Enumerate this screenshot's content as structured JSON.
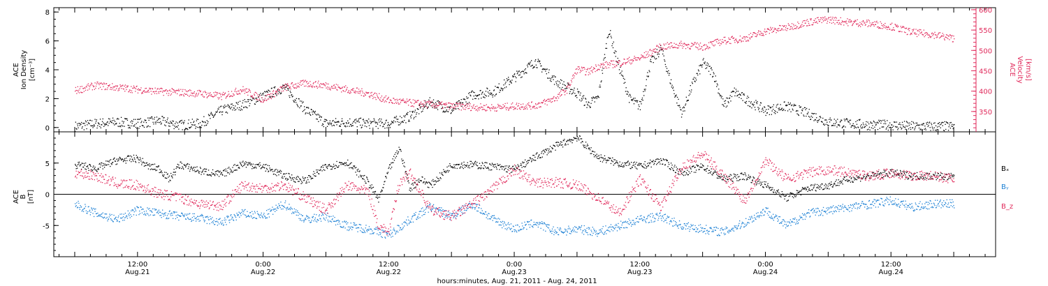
{
  "chart_data": [
    {
      "type": "scatter",
      "panel": "density-velocity",
      "ylabel_left": [
        "ACE",
        "Ion Density",
        "[cm⁻³]"
      ],
      "ylabel_right": [
        "ACE",
        "Velocity",
        "[km/s]"
      ],
      "ylim_left": [
        -0.3,
        8.3
      ],
      "yticks_left": [
        "0",
        "2",
        "4",
        "6",
        "8"
      ],
      "ylim_right": [
        300,
        605
      ],
      "yticks_right": [
        "350",
        "400",
        "450",
        "500",
        "550",
        "600"
      ],
      "series": [
        {
          "axis": "left",
          "color": "#000000",
          "points": [
            [
              0,
              0.1
            ],
            [
              4,
              0.3
            ],
            [
              8,
              0.4
            ],
            [
              12,
              0.3
            ],
            [
              16,
              0.5
            ],
            [
              20,
              0.2
            ],
            [
              24,
              0.3
            ],
            [
              28,
              1.2
            ],
            [
              32,
              1.6
            ],
            [
              36,
              2.2
            ],
            [
              40,
              2.8
            ],
            [
              44,
              1.3
            ],
            [
              48,
              0.3
            ],
            [
              52,
              0.4
            ],
            [
              56,
              0.3
            ],
            [
              60,
              0.3
            ],
            [
              64,
              0.8
            ],
            [
              68,
              1.8
            ],
            [
              72,
              1.2
            ],
            [
              76,
              2.3
            ],
            [
              80,
              2.5
            ],
            [
              84,
              3.5
            ],
            [
              88,
              4.6
            ],
            [
              92,
              3.2
            ],
            [
              96,
              2.4
            ],
            [
              98,
              1.6
            ],
            [
              100,
              2.1
            ],
            [
              102,
              6.8
            ],
            [
              104,
              4.2
            ],
            [
              106,
              2.0
            ],
            [
              108,
              1.5
            ],
            [
              110,
              4.5
            ],
            [
              112,
              5.5
            ],
            [
              114,
              3.0
            ],
            [
              116,
              1.0
            ],
            [
              118,
              3.0
            ],
            [
              120,
              4.5
            ],
            [
              122,
              3.8
            ],
            [
              124,
              1.5
            ],
            [
              126,
              2.5
            ],
            [
              128,
              2.0
            ],
            [
              130,
              1.6
            ],
            [
              132,
              1.2
            ],
            [
              136,
              1.5
            ],
            [
              140,
              1.0
            ],
            [
              144,
              0.4
            ],
            [
              148,
              0.3
            ],
            [
              152,
              0.2
            ],
            [
              156,
              0.2
            ],
            [
              160,
              0.1
            ],
            [
              164,
              0.1
            ],
            [
              168,
              0.1
            ]
          ]
        },
        {
          "axis": "right",
          "color": "#e0285a",
          "points": [
            [
              0,
              402
            ],
            [
              4,
              415
            ],
            [
              8,
              410
            ],
            [
              12,
              405
            ],
            [
              16,
              400
            ],
            [
              20,
              398
            ],
            [
              24,
              395
            ],
            [
              28,
              388
            ],
            [
              32,
              405
            ],
            [
              36,
              380
            ],
            [
              40,
              410
            ],
            [
              44,
              420
            ],
            [
              48,
              415
            ],
            [
              52,
              405
            ],
            [
              56,
              395
            ],
            [
              60,
              378
            ],
            [
              64,
              372
            ],
            [
              68,
              368
            ],
            [
              72,
              364
            ],
            [
              76,
              362
            ],
            [
              80,
              360
            ],
            [
              84,
              364
            ],
            [
              88,
              366
            ],
            [
              90,
              374
            ],
            [
              92,
              385
            ],
            [
              94,
              405
            ],
            [
              96,
              455
            ],
            [
              98,
              448
            ],
            [
              100,
              462
            ],
            [
              104,
              470
            ],
            [
              108,
              482
            ],
            [
              112,
              510
            ],
            [
              116,
              515
            ],
            [
              120,
              510
            ],
            [
              124,
              525
            ],
            [
              128,
              530
            ],
            [
              132,
              548
            ],
            [
              136,
              557
            ],
            [
              140,
              570
            ],
            [
              144,
              577
            ],
            [
              148,
              570
            ],
            [
              152,
              567
            ],
            [
              156,
              560
            ],
            [
              160,
              545
            ],
            [
              164,
              540
            ],
            [
              168,
              530
            ]
          ]
        }
      ]
    },
    {
      "type": "scatter",
      "panel": "magnetic-field",
      "ylabel": [
        "ACE",
        "B",
        "[nT]"
      ],
      "ylim": [
        -10,
        10
      ],
      "yticks": [
        "-5",
        "0",
        "5"
      ],
      "zero_line": true,
      "series": [
        {
          "name": "Bₓ",
          "color": "#000000",
          "points": [
            [
              0,
              4.8
            ],
            [
              4,
              4.2
            ],
            [
              8,
              5.5
            ],
            [
              12,
              5.8
            ],
            [
              14,
              4.5
            ],
            [
              16,
              4.2
            ],
            [
              18,
              2.5
            ],
            [
              20,
              4.8
            ],
            [
              24,
              3.8
            ],
            [
              28,
              3.2
            ],
            [
              32,
              5.0
            ],
            [
              36,
              4.5
            ],
            [
              40,
              3.0
            ],
            [
              44,
              2.2
            ],
            [
              48,
              4.5
            ],
            [
              52,
              5.2
            ],
            [
              56,
              2.0
            ],
            [
              58,
              -0.8
            ],
            [
              60,
              4.0
            ],
            [
              62,
              7.5
            ],
            [
              64,
              1.0
            ],
            [
              66,
              2.5
            ],
            [
              68,
              1.5
            ],
            [
              72,
              4.8
            ],
            [
              76,
              4.8
            ],
            [
              80,
              4.5
            ],
            [
              84,
              4.0
            ],
            [
              88,
              6.0
            ],
            [
              92,
              7.8
            ],
            [
              96,
              9.2
            ],
            [
              98,
              7.5
            ],
            [
              100,
              6.0
            ],
            [
              104,
              5.0
            ],
            [
              108,
              4.5
            ],
            [
              112,
              5.5
            ],
            [
              116,
              3.5
            ],
            [
              120,
              4.5
            ],
            [
              124,
              2.5
            ],
            [
              128,
              3.0
            ],
            [
              132,
              1.5
            ],
            [
              136,
              -0.5
            ],
            [
              140,
              1.0
            ],
            [
              144,
              1.5
            ],
            [
              148,
              2.5
            ],
            [
              152,
              3.0
            ],
            [
              156,
              3.5
            ],
            [
              160,
              3.0
            ],
            [
              164,
              3.0
            ],
            [
              168,
              2.8
            ]
          ]
        },
        {
          "name": "Bᵧ",
          "color": "#1a7fd4",
          "points": [
            [
              0,
              -1.5
            ],
            [
              4,
              -3.0
            ],
            [
              8,
              -4.0
            ],
            [
              12,
              -2.5
            ],
            [
              16,
              -3.0
            ],
            [
              20,
              -3.5
            ],
            [
              24,
              -3.8
            ],
            [
              28,
              -4.5
            ],
            [
              32,
              -3.0
            ],
            [
              36,
              -3.5
            ],
            [
              40,
              -1.5
            ],
            [
              44,
              -4.0
            ],
            [
              48,
              -3.5
            ],
            [
              52,
              -5.0
            ],
            [
              56,
              -5.5
            ],
            [
              60,
              -6.5
            ],
            [
              64,
              -4.0
            ],
            [
              68,
              -2.0
            ],
            [
              72,
              -3.5
            ],
            [
              76,
              -1.5
            ],
            [
              80,
              -4.0
            ],
            [
              84,
              -5.5
            ],
            [
              88,
              -4.5
            ],
            [
              92,
              -6.0
            ],
            [
              96,
              -5.5
            ],
            [
              100,
              -6.0
            ],
            [
              104,
              -5.0
            ],
            [
              108,
              -4.0
            ],
            [
              112,
              -3.5
            ],
            [
              116,
              -5.0
            ],
            [
              120,
              -5.5
            ],
            [
              124,
              -6.0
            ],
            [
              128,
              -4.5
            ],
            [
              132,
              -2.5
            ],
            [
              136,
              -5.0
            ],
            [
              140,
              -3.0
            ],
            [
              144,
              -2.5
            ],
            [
              148,
              -2.0
            ],
            [
              152,
              -1.5
            ],
            [
              156,
              -1.0
            ],
            [
              160,
              -2.0
            ],
            [
              164,
              -1.5
            ],
            [
              168,
              -1.5
            ]
          ]
        },
        {
          "name": "B_z",
          "color": "#e0285a",
          "points": [
            [
              0,
              3.5
            ],
            [
              4,
              3.0
            ],
            [
              8,
              1.8
            ],
            [
              12,
              1.5
            ],
            [
              16,
              0.2
            ],
            [
              20,
              -0.5
            ],
            [
              24,
              -1.5
            ],
            [
              28,
              -1.8
            ],
            [
              32,
              1.5
            ],
            [
              36,
              1.0
            ],
            [
              40,
              1.5
            ],
            [
              44,
              -0.5
            ],
            [
              48,
              -2.5
            ],
            [
              52,
              1.5
            ],
            [
              56,
              0.5
            ],
            [
              58,
              -5.0
            ],
            [
              60,
              -6.0
            ],
            [
              62,
              2.0
            ],
            [
              64,
              3.5
            ],
            [
              68,
              -2.5
            ],
            [
              72,
              -3.5
            ],
            [
              76,
              -1.5
            ],
            [
              80,
              1.0
            ],
            [
              84,
              4.0
            ],
            [
              88,
              1.8
            ],
            [
              92,
              2.0
            ],
            [
              96,
              1.5
            ],
            [
              100,
              -0.5
            ],
            [
              104,
              -3.0
            ],
            [
              108,
              2.5
            ],
            [
              112,
              -2.0
            ],
            [
              116,
              4.5
            ],
            [
              120,
              6.5
            ],
            [
              124,
              3.0
            ],
            [
              128,
              -1.0
            ],
            [
              132,
              5.5
            ],
            [
              136,
              2.5
            ],
            [
              140,
              3.5
            ],
            [
              144,
              4.0
            ],
            [
              148,
              3.5
            ],
            [
              152,
              3.0
            ],
            [
              156,
              3.5
            ],
            [
              160,
              3.0
            ],
            [
              164,
              3.0
            ],
            [
              168,
              2.5
            ]
          ]
        }
      ],
      "legend": [
        "Bₓ",
        "Bᵧ",
        "B_z"
      ]
    }
  ],
  "x_axis": {
    "xlim_hours": [
      -4,
      176
    ],
    "major_ticks": [
      {
        "h": 12,
        "top": "12:00",
        "bottom": "Aug.21"
      },
      {
        "h": 36,
        "top": "0:00",
        "bottom": "Aug.22"
      },
      {
        "h": 60,
        "top": "12:00",
        "bottom": "Aug.22"
      },
      {
        "h": 84,
        "top": "0:00",
        "bottom": "Aug.23"
      },
      {
        "h": 108,
        "top": "12:00",
        "bottom": "Aug.23"
      },
      {
        "h": 132,
        "top": "0:00",
        "bottom": "Aug.24"
      },
      {
        "h": 156,
        "top": "12:00",
        "bottom": "Aug.24"
      }
    ],
    "label": "hours:minutes, Aug. 21, 2011 - Aug. 24, 2011"
  },
  "labels": {
    "top_left_line1": "ACE",
    "top_left_line2": "Ion Density",
    "top_left_line3": "[cm⁻³]",
    "top_right_line1": "ACE",
    "top_right_line2": "Velocity",
    "top_right_line3": "[km/s]",
    "bottom_left_line1": "ACE",
    "bottom_left_line2": "B",
    "bottom_left_line3": "[nT]",
    "legend_bx": "Bₓ",
    "legend_by": "Bᵧ",
    "legend_bz": "B_z",
    "xlabel": "hours:minutes, Aug. 21, 2011 - Aug. 24, 2011"
  },
  "colors": {
    "density": "#000000",
    "velocity": "#e0285a",
    "bx": "#000000",
    "by": "#1a7fd4",
    "bz": "#e0285a"
  }
}
